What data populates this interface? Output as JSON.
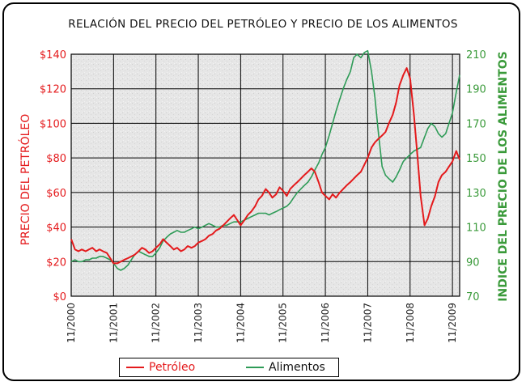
{
  "chart_data": {
    "type": "line",
    "title": "RELACIÓN DEL PRECIO DEL PETRÓLEO Y PRECIO DE LOS ALIMENTOS",
    "ylabel": "PRECIO DEL PETRÓLEO",
    "y2label": "INDICE DEL PRECIO DE LOS ALIMENTOS",
    "xlabel": "",
    "x_ticks": [
      "11/2000",
      "11/2001",
      "11/2002",
      "11/2003",
      "11/2004",
      "11/2005",
      "11/2006",
      "11/2007",
      "11/2008",
      "11/2009"
    ],
    "x_range": [
      2000.83,
      2010.0
    ],
    "y_ticks": [
      "$0",
      "$20",
      "$40",
      "$60",
      "$80",
      "$100",
      "$120",
      "$140"
    ],
    "ylim": [
      0,
      140
    ],
    "y2_ticks": [
      "70",
      "90",
      "110",
      "130",
      "150",
      "170",
      "190",
      "210"
    ],
    "y2lim": [
      70,
      210
    ],
    "grid": true,
    "legend_position": "bottom",
    "colors": {
      "petroleo": "#e41a1c",
      "alimentos": "#2e9b57",
      "left_axis": "#e41a1c",
      "right_axis": "#3a9a3a",
      "background": "#e6e6e6"
    },
    "series": [
      {
        "name": "Petróleo",
        "axis": "left",
        "x": [
          2000.83,
          2000.92,
          2001.0,
          2001.08,
          2001.17,
          2001.25,
          2001.33,
          2001.42,
          2001.5,
          2001.58,
          2001.67,
          2001.75,
          2001.83,
          2001.92,
          2002.0,
          2002.08,
          2002.17,
          2002.25,
          2002.33,
          2002.42,
          2002.5,
          2002.58,
          2002.67,
          2002.75,
          2002.83,
          2002.92,
          2003.0,
          2003.08,
          2003.17,
          2003.25,
          2003.33,
          2003.42,
          2003.5,
          2003.58,
          2003.67,
          2003.75,
          2003.83,
          2003.92,
          2004.0,
          2004.08,
          2004.17,
          2004.25,
          2004.33,
          2004.42,
          2004.5,
          2004.58,
          2004.67,
          2004.75,
          2004.83,
          2004.92,
          2005.0,
          2005.08,
          2005.17,
          2005.25,
          2005.33,
          2005.42,
          2005.5,
          2005.58,
          2005.67,
          2005.75,
          2005.83,
          2005.92,
          2006.0,
          2006.08,
          2006.17,
          2006.25,
          2006.33,
          2006.42,
          2006.5,
          2006.58,
          2006.67,
          2006.75,
          2006.83,
          2006.92,
          2007.0,
          2007.08,
          2007.17,
          2007.25,
          2007.33,
          2007.42,
          2007.5,
          2007.58,
          2007.67,
          2007.75,
          2007.83,
          2007.92,
          2008.0,
          2008.08,
          2008.17,
          2008.25,
          2008.33,
          2008.42,
          2008.5,
          2008.58,
          2008.67,
          2008.75,
          2008.83,
          2008.92,
          2009.0,
          2009.08,
          2009.17,
          2009.25,
          2009.33,
          2009.42,
          2009.5,
          2009.58,
          2009.67,
          2009.75,
          2009.83,
          2009.92,
          2010.0
        ],
        "values": [
          33,
          27,
          26,
          27,
          26,
          27,
          28,
          26,
          27,
          26,
          25,
          22,
          19,
          19,
          20,
          21,
          22,
          23,
          24,
          26,
          28,
          27,
          25,
          26,
          28,
          30,
          33,
          31,
          29,
          27,
          28,
          26,
          27,
          29,
          28,
          29,
          31,
          32,
          33,
          35,
          36,
          38,
          39,
          41,
          43,
          45,
          47,
          44,
          41,
          44,
          47,
          49,
          52,
          56,
          58,
          62,
          60,
          57,
          59,
          63,
          61,
          58,
          62,
          64,
          66,
          68,
          70,
          72,
          74,
          72,
          66,
          60,
          58,
          56,
          59,
          57,
          60,
          62,
          64,
          66,
          68,
          70,
          72,
          76,
          80,
          86,
          89,
          91,
          93,
          95,
          100,
          105,
          112,
          122,
          128,
          132,
          126,
          105,
          82,
          58,
          41,
          45,
          52,
          58,
          66,
          70,
          72,
          75,
          78,
          84,
          79
        ]
      },
      {
        "name": "Alimentos",
        "axis": "right",
        "x": [
          2000.83,
          2000.92,
          2001.0,
          2001.08,
          2001.17,
          2001.25,
          2001.33,
          2001.42,
          2001.5,
          2001.58,
          2001.67,
          2001.75,
          2001.83,
          2001.92,
          2002.0,
          2002.08,
          2002.17,
          2002.25,
          2002.33,
          2002.42,
          2002.5,
          2002.58,
          2002.67,
          2002.75,
          2002.83,
          2002.92,
          2003.0,
          2003.08,
          2003.17,
          2003.25,
          2003.33,
          2003.42,
          2003.5,
          2003.58,
          2003.67,
          2003.75,
          2003.83,
          2003.92,
          2004.0,
          2004.08,
          2004.17,
          2004.25,
          2004.33,
          2004.42,
          2004.5,
          2004.58,
          2004.67,
          2004.75,
          2004.83,
          2004.92,
          2005.0,
          2005.08,
          2005.17,
          2005.25,
          2005.33,
          2005.42,
          2005.5,
          2005.58,
          2005.67,
          2005.75,
          2005.83,
          2005.92,
          2006.0,
          2006.08,
          2006.17,
          2006.25,
          2006.33,
          2006.42,
          2006.5,
          2006.58,
          2006.67,
          2006.75,
          2006.83,
          2006.92,
          2007.0,
          2007.08,
          2007.17,
          2007.25,
          2007.33,
          2007.42,
          2007.5,
          2007.58,
          2007.67,
          2007.75,
          2007.83,
          2007.92,
          2008.0,
          2008.08,
          2008.17,
          2008.25,
          2008.33,
          2008.42,
          2008.5,
          2008.58,
          2008.67,
          2008.75,
          2008.83,
          2008.92,
          2009.0,
          2009.08,
          2009.17,
          2009.25,
          2009.33,
          2009.42,
          2009.5,
          2009.58,
          2009.67,
          2009.75,
          2009.83,
          2009.92,
          2010.0
        ],
        "values": [
          90,
          91,
          90,
          90,
          91,
          91,
          92,
          92,
          93,
          93,
          92,
          91,
          89,
          86,
          85,
          86,
          88,
          91,
          94,
          96,
          95,
          94,
          93,
          93,
          95,
          98,
          102,
          104,
          106,
          107,
          108,
          107,
          107,
          108,
          109,
          110,
          109,
          110,
          111,
          112,
          111,
          110,
          110,
          111,
          111,
          112,
          113,
          113,
          113,
          114,
          115,
          116,
          117,
          118,
          118,
          118,
          117,
          118,
          119,
          120,
          121,
          122,
          124,
          127,
          130,
          132,
          134,
          136,
          139,
          143,
          147,
          152,
          156,
          163,
          170,
          177,
          184,
          190,
          195,
          200,
          208,
          210,
          208,
          211,
          212,
          200,
          185,
          165,
          145,
          140,
          138,
          136,
          139,
          143,
          148,
          150,
          152,
          154,
          155,
          156,
          162,
          167,
          170,
          168,
          164,
          162,
          164,
          170,
          176,
          188,
          198
        ]
      }
    ],
    "legend": [
      "Petróleo",
      "Alimentos"
    ]
  }
}
